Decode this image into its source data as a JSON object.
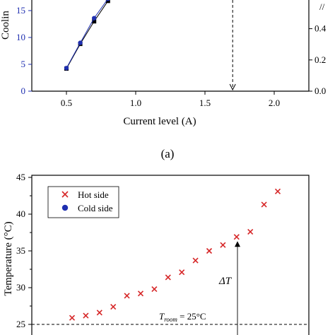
{
  "chart_data": [
    {
      "type": "line",
      "panel_label": "(a)",
      "xlabel": "Current level (A)",
      "ylabel_fragment": "Coolin",
      "xlim": [
        0.25,
        2.25
      ],
      "ylim": [
        0,
        20
      ],
      "x_ticks": [
        "0.5",
        "1.0",
        "1.5",
        "2.0"
      ],
      "y_ticks": [
        "0",
        "5",
        "10",
        "15"
      ],
      "y2_ticks": [
        "0.0",
        "0.2",
        "0.4"
      ],
      "y2_label_fragment": "//",
      "dashed_marker_x": 1.7,
      "series": [
        {
          "color": "#000000",
          "x": [
            0.5,
            0.6,
            0.7,
            0.8
          ],
          "values": [
            4.2,
            8.8,
            13.0,
            16.8
          ]
        },
        {
          "color": "#1f2fb0",
          "x": [
            0.5,
            0.6,
            0.7,
            0.8
          ],
          "values": [
            4.3,
            9.0,
            13.6,
            17.2
          ]
        }
      ]
    },
    {
      "type": "scatter",
      "xlabel": "",
      "ylabel": "Temperature (°C)",
      "ylim": [
        25,
        45
      ],
      "y_ticks": [
        "25",
        "30",
        "35",
        "40",
        "45"
      ],
      "legend": [
        {
          "label": "Hot side",
          "marker": "cross",
          "color": "#d62728"
        },
        {
          "label": "Cold side",
          "marker": "circle",
          "color": "#1f2fb0"
        }
      ],
      "series": [
        {
          "name": "Hot side",
          "color": "#d62728",
          "x": [
            1,
            2,
            3,
            4,
            5,
            6,
            7,
            8,
            9,
            10,
            11,
            12,
            13,
            14,
            15,
            16
          ],
          "values": [
            25.9,
            26.2,
            26.6,
            27.4,
            28.9,
            29.2,
            29.8,
            31.4,
            32.1,
            33.7,
            35.0,
            35.8,
            36.9,
            37.6,
            41.3,
            43.1
          ]
        }
      ],
      "reference_line": {
        "y": 25,
        "label_main": "T",
        "label_sub": "room",
        "label_tail": " = 25°C"
      },
      "delta_annotation": "ΔT"
    }
  ]
}
